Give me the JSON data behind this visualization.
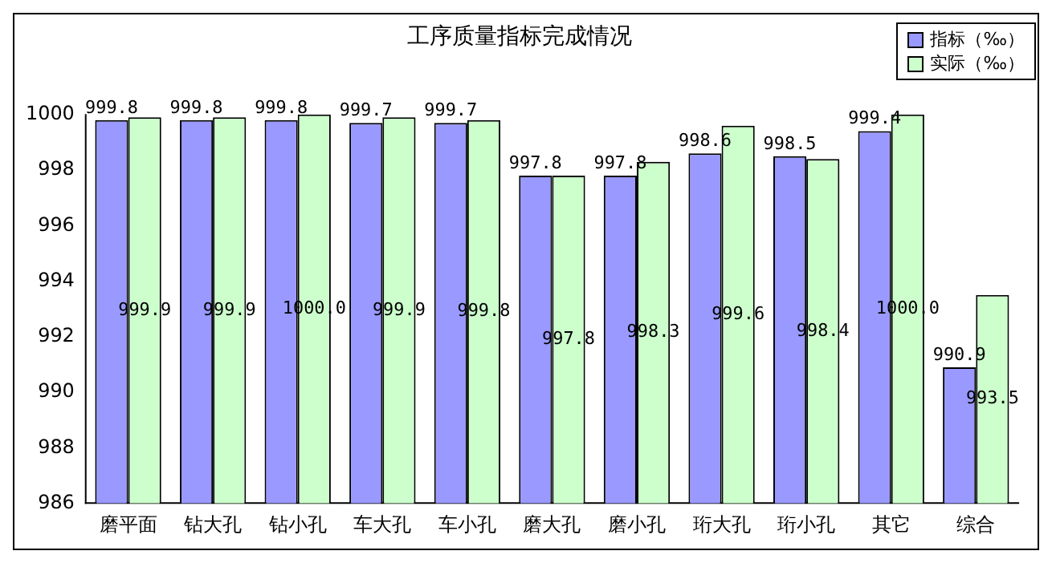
{
  "chart_data": {
    "type": "bar",
    "title": "工序质量指标完成情况",
    "categories": [
      "磨平面",
      "钻大孔",
      "钻小孔",
      "车大孔",
      "车小孔",
      "磨大孔",
      "磨小孔",
      "珩大孔",
      "珩小孔",
      "其它",
      "综合"
    ],
    "series": [
      {
        "name": "指标（‰）",
        "color": "#9999ff",
        "values": [
          999.8,
          999.8,
          999.8,
          999.7,
          999.7,
          997.8,
          997.8,
          998.6,
          998.5,
          999.4,
          990.9
        ],
        "value_labels": [
          "999.8",
          "999.8",
          "999.8",
          "999.7",
          "999.7",
          "997.8",
          "997.8",
          "998.6",
          "998.5",
          "999.4",
          "990.9"
        ]
      },
      {
        "name": "实际（‰）",
        "color": "#ccffcc",
        "values": [
          999.9,
          999.9,
          1000.0,
          999.9,
          999.8,
          997.8,
          998.3,
          999.6,
          998.4,
          1000.0,
          993.5
        ],
        "value_labels": [
          "999.9",
          "999.9",
          "1000.0",
          "999.9",
          "999.8",
          "997.8",
          "998.3",
          "999.6",
          "998.4",
          "1000.0",
          "993.5"
        ]
      }
    ],
    "ylim": [
      986,
      1000
    ],
    "yticks": [
      986,
      988,
      990,
      992,
      994,
      996,
      998,
      1000
    ],
    "grid": false,
    "legend": "top right"
  }
}
